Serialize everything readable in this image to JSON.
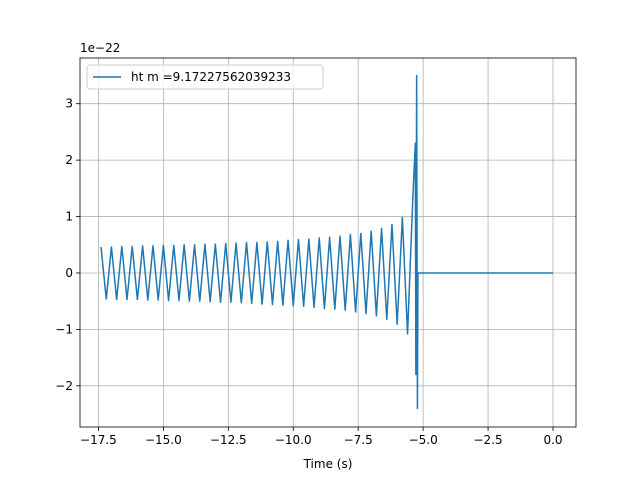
{
  "chart_data": {
    "type": "line",
    "xlabel": "Time (s)",
    "y_offset_text": "1e−22",
    "legend": "upper left",
    "grid": true,
    "xlim": [
      -18.21,
      0.885
    ],
    "ylim": [
      -2.73,
      3.81
    ],
    "xticks": [
      {
        "value": -17.5,
        "label": "−17.5"
      },
      {
        "value": -15,
        "label": "−15.0"
      },
      {
        "value": -12.5,
        "label": "−12.5"
      },
      {
        "value": -10,
        "label": "−10.0"
      },
      {
        "value": -7.5,
        "label": "−7.5"
      },
      {
        "value": -5,
        "label": "−5.0"
      },
      {
        "value": -2.5,
        "label": "−2.5"
      },
      {
        "value": 0,
        "label": "0.0"
      }
    ],
    "yticks": [
      {
        "value": -2,
        "label": "−2"
      },
      {
        "value": -1,
        "label": "−1"
      },
      0,
      1,
      2,
      3
    ],
    "x": [
      -17.4,
      -17.2,
      -17.0,
      -16.8,
      -16.6,
      -16.4,
      -16.2,
      -16.0,
      -15.8,
      -15.6,
      -15.4,
      -15.2,
      -15.0,
      -14.8,
      -14.6,
      -14.4,
      -14.2,
      -14.0,
      -13.8,
      -13.6,
      -13.4,
      -13.2,
      -13.0,
      -12.8,
      -12.6,
      -12.4,
      -12.2,
      -12.0,
      -11.8,
      -11.6,
      -11.4,
      -11.2,
      -11.0,
      -10.8,
      -10.6,
      -10.4,
      -10.2,
      -10.0,
      -9.8,
      -9.6,
      -9.4,
      -9.2,
      -9.0,
      -8.8,
      -8.6,
      -8.4,
      -8.2,
      -8.0,
      -7.8,
      -7.6,
      -7.4,
      -7.2,
      -7.0,
      -6.8,
      -6.6,
      -6.4,
      -6.2,
      -6.0,
      -5.8,
      -5.6,
      -5.4,
      -5.3,
      -5.28,
      -5.25,
      -5.22,
      -5.2,
      0
    ],
    "series": [
      {
        "name": "ht m =9.17227562039233",
        "color": "#1f77b4",
        "values": [
          0.46,
          -0.46,
          0.46,
          -0.47,
          0.47,
          -0.47,
          0.47,
          -0.47,
          0.48,
          -0.48,
          0.48,
          -0.48,
          0.49,
          -0.49,
          0.49,
          -0.49,
          0.5,
          -0.5,
          0.5,
          -0.5,
          0.51,
          -0.51,
          0.51,
          -0.52,
          0.52,
          -0.52,
          0.53,
          -0.53,
          0.54,
          -0.54,
          0.54,
          -0.55,
          0.55,
          -0.56,
          0.56,
          -0.57,
          0.58,
          -0.58,
          0.59,
          -0.59,
          0.6,
          -0.61,
          0.62,
          -0.63,
          0.63,
          -0.64,
          0.65,
          -0.66,
          0.68,
          -0.69,
          0.7,
          -0.72,
          0.74,
          -0.76,
          0.79,
          -0.82,
          0.86,
          -0.91,
          0.98,
          -1.08,
          1.29,
          2.3,
          -1.8,
          3.5,
          -2.4,
          0,
          0
        ]
      }
    ]
  }
}
